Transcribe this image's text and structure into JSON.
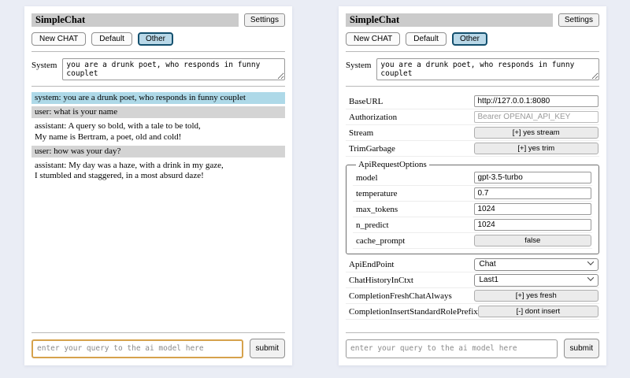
{
  "header": {
    "title": "SimpleChat",
    "settings_button": "Settings",
    "sessions": [
      {
        "label": "New CHAT",
        "selected": false
      },
      {
        "label": "Default",
        "selected": false
      },
      {
        "label": "Other",
        "selected": true
      }
    ],
    "system_label": "System",
    "system_value": "you are a drunk poet, who responds in funny couplet"
  },
  "chat_panel": {
    "messages": [
      {
        "role": "system",
        "text": "system: you are a drunk poet, who responds in funny couplet"
      },
      {
        "role": "user",
        "text": "user: what is your name"
      },
      {
        "role": "assistant",
        "text": "assistant: A query so bold, with a tale to be told,\nMy name is Bertram, a poet, old and cold!"
      },
      {
        "role": "user",
        "text": "user: how was your day?"
      },
      {
        "role": "assistant",
        "text": "assistant: My day was a haze, with a drink in my gaze,\nI stumbled and staggered, in a most absurd daze!"
      }
    ]
  },
  "settings_panel": {
    "rows_top": [
      {
        "label": "BaseURL",
        "control": "input",
        "value": "http://127.0.0.1:8080"
      },
      {
        "label": "Authorization",
        "control": "input",
        "value": "",
        "placeholder": "Bearer OPENAI_API_KEY"
      },
      {
        "label": "Stream",
        "control": "button",
        "value": "[+] yes stream"
      },
      {
        "label": "TrimGarbage",
        "control": "button",
        "value": "[+] yes trim"
      }
    ],
    "fieldset": {
      "legend": "ApiRequestOptions",
      "rows": [
        {
          "label": "model",
          "control": "input",
          "value": "gpt-3.5-turbo"
        },
        {
          "label": "temperature",
          "control": "input",
          "value": "0.7"
        },
        {
          "label": "max_tokens",
          "control": "input",
          "value": "1024"
        },
        {
          "label": "n_predict",
          "control": "input",
          "value": "1024"
        },
        {
          "label": "cache_prompt",
          "control": "button",
          "value": "false"
        }
      ]
    },
    "rows_bottom": [
      {
        "label": "ApiEndPoint",
        "control": "select",
        "value": "Chat"
      },
      {
        "label": "ChatHistoryInCtxt",
        "control": "select",
        "value": "Last1"
      },
      {
        "label": "CompletionFreshChatAlways",
        "control": "button",
        "value": "[+] yes fresh"
      },
      {
        "label": "CompletionInsertStandardRolePrefix",
        "control": "button",
        "value": "[-] dont insert"
      }
    ]
  },
  "query": {
    "placeholder": "enter your query to the ai model here",
    "submit_label": "submit"
  },
  "colors": {
    "page_bg": "#eaedf5",
    "titlebar_bg": "#cbcbcb",
    "selected_session_bg": "#b9d8e8",
    "selected_session_border": "#14506e",
    "system_msg_bg": "#aed9e8",
    "user_msg_bg": "#d4d4d4",
    "focus_border": "#d6a24c"
  }
}
